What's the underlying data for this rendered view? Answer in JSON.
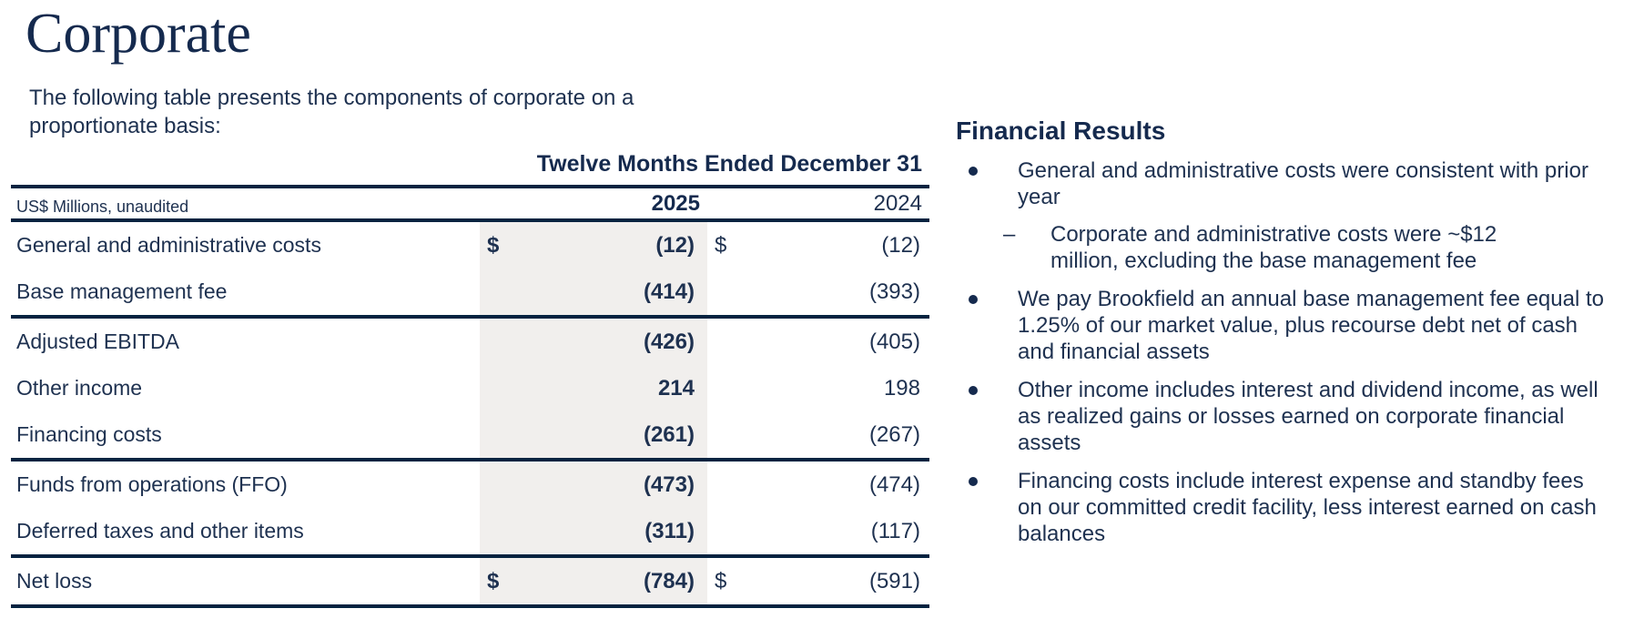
{
  "title": "Corporate",
  "intro": "The following table presents the components of corporate on a proportionate basis:",
  "table": {
    "period_header": "Twelve Months Ended December 31",
    "unit_label": "US$ Millions, unaudited",
    "columns": [
      "2025",
      "2024"
    ],
    "rows": [
      {
        "label": "General and administrative costs",
        "d1": "$",
        "v1": "(12)",
        "d2": "$",
        "v2": "(12)",
        "rule_after": false
      },
      {
        "label": "Base management fee",
        "d1": "",
        "v1": "(414)",
        "d2": "",
        "v2": "(393)",
        "rule_after": true
      },
      {
        "label": "Adjusted EBITDA",
        "d1": "",
        "v1": "(426)",
        "d2": "",
        "v2": "(405)",
        "rule_after": false
      },
      {
        "label": "Other income",
        "d1": "",
        "v1": "214",
        "d2": "",
        "v2": "198",
        "rule_after": false
      },
      {
        "label": "Financing costs",
        "d1": "",
        "v1": "(261)",
        "d2": "",
        "v2": "(267)",
        "rule_after": true
      },
      {
        "label": "Funds from operations (FFO)",
        "d1": "",
        "v1": "(473)",
        "d2": "",
        "v2": "(474)",
        "rule_after": false
      },
      {
        "label": "Deferred taxes and other items",
        "d1": "",
        "v1": "(311)",
        "d2": "",
        "v2": "(117)",
        "rule_after": true
      },
      {
        "label": "Net loss",
        "d1": "$",
        "v1": "(784)",
        "d2": "$",
        "v2": "(591)",
        "rule_after": true
      }
    ]
  },
  "financial_results": {
    "heading": "Financial Results",
    "bullets": [
      {
        "text": "General and administrative costs were consistent with prior year",
        "subs": [
          "Corporate and administrative costs were ~$12 million, excluding the base management fee"
        ]
      },
      {
        "text": "We pay Brookfield an annual base management fee equal to 1.25% of our market value, plus recourse debt net of cash and financial assets",
        "subs": []
      },
      {
        "text": "Other income includes interest and dividend income, as well as realized gains or losses earned on corporate financial assets",
        "subs": []
      },
      {
        "text": "Financing costs include interest expense and standby fees on our committed credit facility, less interest earned on cash balances",
        "subs": []
      }
    ]
  },
  "colors": {
    "navy_text": "#1e3150",
    "navy_dark": "#152a4e",
    "rule_navy": "#052340",
    "shade_gray": "#f1efed"
  }
}
